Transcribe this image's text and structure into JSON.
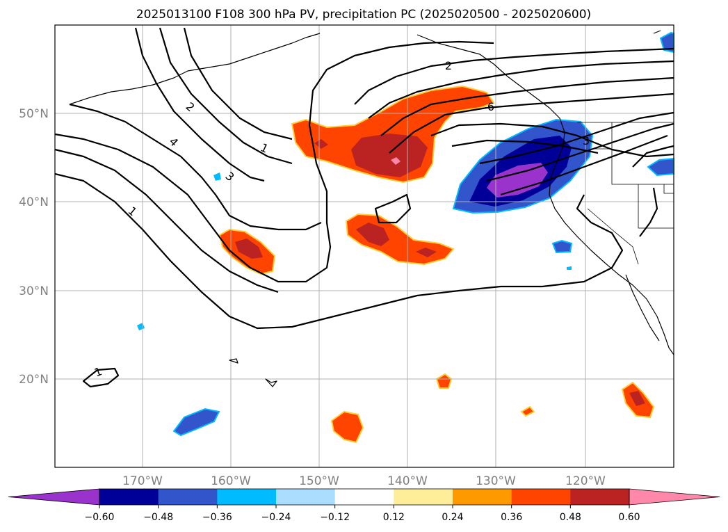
{
  "title": "2025013100 F108 300 hPa PV, precipitation PC (2025020500 - 2025020600)",
  "lat_labels": [
    "50°N",
    "40°N",
    "30°N",
    "20°N"
  ],
  "lon_labels": [
    "170°W",
    "160°W",
    "150°W",
    "140°W",
    "130°W",
    "120°W"
  ],
  "contour_labels": [
    "1",
    "2",
    "4",
    "3",
    "1",
    "1",
    "2",
    "6",
    "3"
  ],
  "colorbar": {
    "ticks": [
      "−0.60",
      "−0.48",
      "−0.36",
      "−0.24",
      "−0.12",
      "0.12",
      "0.24",
      "0.36",
      "0.48",
      "0.60"
    ],
    "colors": [
      "#9933cc",
      "#000099",
      "#3355cc",
      "#00bbff",
      "#aaddff",
      "#ffffff",
      "#ffee99",
      "#ff9900",
      "#ff4400",
      "#bb2222",
      "#ff88aa"
    ]
  },
  "map": {
    "lon_range": [
      -180,
      -110
    ],
    "lat_range": [
      10,
      60
    ]
  }
}
